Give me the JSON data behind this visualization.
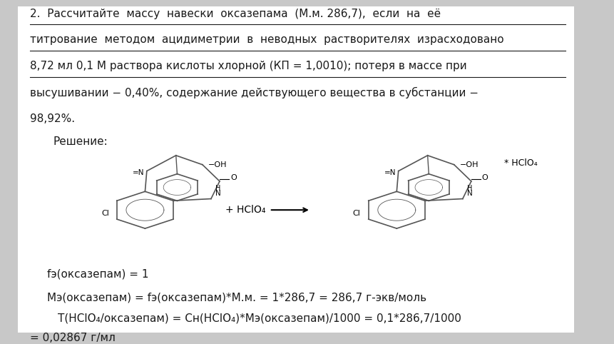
{
  "bg_color": "#c8c8c8",
  "content_bg": "#ffffff",
  "text_color": "#1a1a1a",
  "title_line1": "2.  Рассчитайте  массу  навески  оксазепама  (М.м. 286,7),  если  на  её",
  "title_line2": "титрование  методом  ацидиметрии  в  неводных  растворителях  израсходовано",
  "title_line3": "8,72 мл 0,1 М раствора кислоты хлорной (КП = 1,0010); потеря в массе при",
  "title_line4": "высушивании − 0,40%, содержание действующего вещества в субстанции −",
  "title_line5": "98,92%.",
  "solution_label": "Решение:",
  "formula1": "fэ(оксазепам) = 1",
  "formula2": "Mэ(оксазепам) = fэ(оксазепам)*М.м. = 1*286,7 = 286,7 г-экв/моль",
  "formula3_part1": "        Т(HClO₄/оксазепам) = Cн(HClO₄)*Mэ(оксазепам)/1000 = 0,1*286,7/1000",
  "formula3_part2": "= 0,02867 г/мл",
  "underline_lines": [
    1,
    2,
    3
  ],
  "font_size_main": 11,
  "font_size_formula": 11
}
